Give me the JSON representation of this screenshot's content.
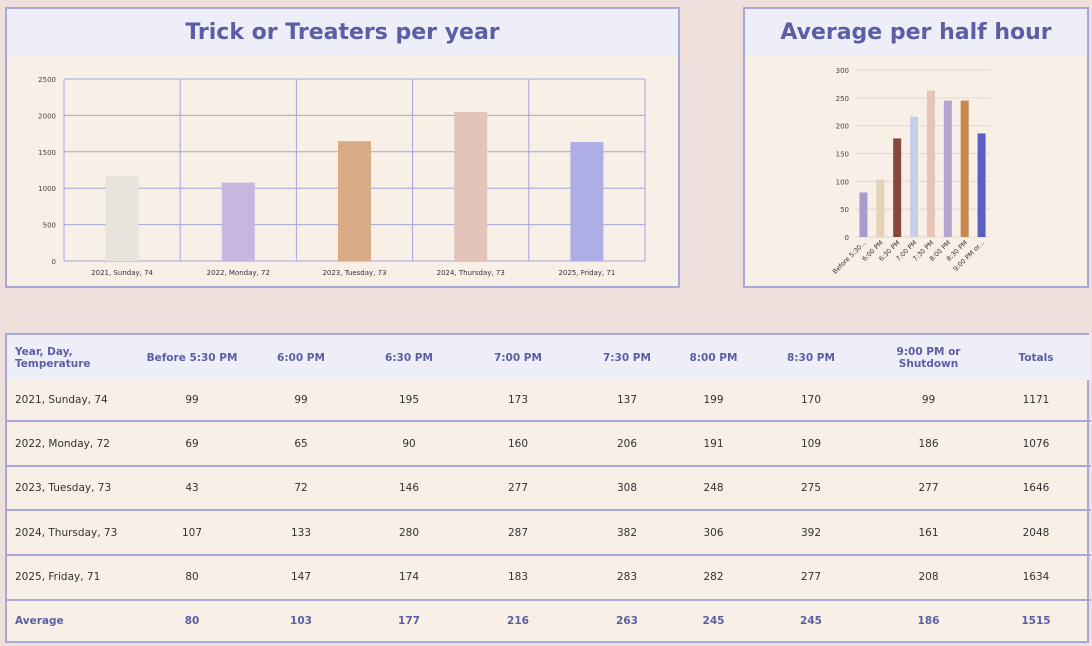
{
  "charts": {
    "yearly": {
      "title": "Trick or Treaters per year"
    },
    "halfhour": {
      "title": "Average per half hour"
    }
  },
  "chart_data": [
    {
      "type": "bar",
      "title": "Trick or Treaters per year",
      "categories": [
        "2021, Sunday, 74",
        "2022, Monday, 72",
        "2023, Tuesday, 73",
        "2024, Thursday, 73",
        "2025, Friday, 71"
      ],
      "values": [
        1171,
        1076,
        1646,
        2048,
        1634
      ],
      "colors": [
        "#e6e4dc",
        "#c6b7e0",
        "#d9ab86",
        "#e3c4bb",
        "#aeaee6"
      ],
      "ylim": [
        0,
        2500
      ],
      "yticks": [
        0,
        500,
        1000,
        1500,
        2000,
        2500
      ],
      "grid": true
    },
    {
      "type": "bar",
      "title": "Average per half hour",
      "categories": [
        "Before 5:30...",
        "6:00 PM",
        "6:30 PM",
        "7:00 PM",
        "7:30 PM",
        "8:00 PM",
        "8:30 PM",
        "9:00 PM or..."
      ],
      "values": [
        80,
        103,
        177,
        216,
        263,
        245,
        245,
        186
      ],
      "colors": [
        "#a99bcf",
        "#e2d2b8",
        "#87473c",
        "#c8cdea",
        "#e6c4b6",
        "#b5a3cf",
        "#c8874f",
        "#5a5fc4"
      ],
      "ylim": [
        0,
        300
      ],
      "yticks": [
        0,
        50,
        100,
        150,
        200,
        250,
        300
      ],
      "grid": true
    }
  ],
  "table": {
    "headers": [
      "Year, Day, Temperature",
      "Before 5:30 PM",
      "6:00 PM",
      "6:30 PM",
      "7:00 PM",
      "7:30 PM",
      "8:00 PM",
      "8:30 PM",
      "9:00 PM or Shutdown",
      "Totals"
    ],
    "rows": [
      [
        "2021, Sunday, 74",
        "99",
        "99",
        "195",
        "173",
        "137",
        "199",
        "170",
        "99",
        "1171"
      ],
      [
        "2022, Monday, 72",
        "69",
        "65",
        "90",
        "160",
        "206",
        "191",
        "109",
        "186",
        "1076"
      ],
      [
        "2023, Tuesday, 73",
        "43",
        "72",
        "146",
        "277",
        "308",
        "248",
        "275",
        "277",
        "1646"
      ],
      [
        "2024, Thursday, 73",
        "107",
        "133",
        "280",
        "287",
        "382",
        "306",
        "392",
        "161",
        "2048"
      ],
      [
        "2025, Friday, 71",
        "80",
        "147",
        "174",
        "183",
        "283",
        "282",
        "277",
        "208",
        "1634"
      ]
    ],
    "average": [
      "Average",
      "80",
      "103",
      "177",
      "216",
      "263",
      "245",
      "245",
      "186",
      "1515"
    ]
  }
}
